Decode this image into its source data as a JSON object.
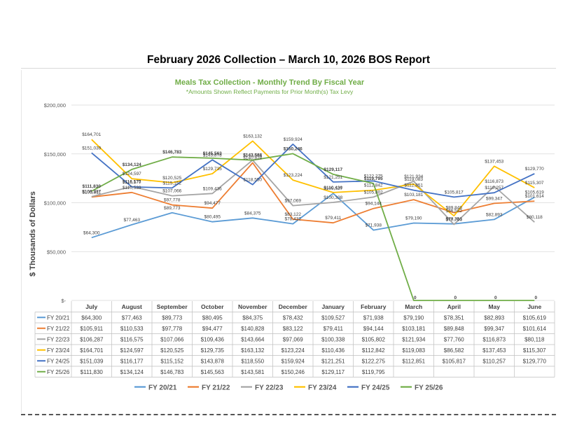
{
  "page": {
    "title": "February 2026 Collection – March 10, 2026 BOS Report"
  },
  "chart_data": {
    "type": "line",
    "title": "Meals Tax Collection - Monthly Trend By Fiscal Year",
    "subtitle": "*Amounts Shown Reflect Payments for Prior Month(s) Tax Levy",
    "xlabel": "",
    "ylabel": "$ Thousands of Dollars",
    "ylim": [
      0,
      200000
    ],
    "yticks": [
      0,
      50000,
      100000,
      150000,
      200000
    ],
    "ytick_labels": [
      "$-",
      "$50,000",
      "$100,000",
      "$150,000",
      "$200,000"
    ],
    "grid": true,
    "legend": "bottom",
    "categories": [
      "July",
      "August",
      "September",
      "October",
      "November",
      "December",
      "January",
      "February",
      "March",
      "April",
      "May",
      "June"
    ],
    "series": [
      {
        "name": "FY 20/21",
        "color": "#5b9bd5",
        "values": [
          64300,
          77463,
          89773,
          80495,
          84375,
          78432,
          109527,
          71938,
          79190,
          78351,
          82893,
          105619
        ],
        "labels": [
          "$64,300",
          "$77,463",
          "$89,773",
          "$80,495",
          "$84,375",
          "$78,432",
          "$109,527",
          "$71,938",
          "$79,190",
          "$78,351",
          "$82,893",
          "$105,619"
        ]
      },
      {
        "name": "FY 21/22",
        "color": "#ed7d31",
        "values": [
          105911,
          110533,
          97778,
          94477,
          140828,
          83122,
          79411,
          94144,
          103181,
          89848,
          99347,
          101614
        ],
        "labels": [
          "$105,911",
          "$110,533",
          "$97,778",
          "$94,477",
          "$140,828",
          "$83,122",
          "$79,411",
          "$94,144",
          "$103,181",
          "$89,848",
          "$99,347",
          "$101,614"
        ]
      },
      {
        "name": "FY 22/23",
        "color": "#a5a5a5",
        "values": [
          106287,
          116575,
          107066,
          109436,
          143664,
          97069,
          100338,
          105802,
          121934,
          77760,
          116873,
          80118
        ],
        "labels": [
          "$106,287",
          "$116,575",
          "$107,066",
          "$109,436",
          "$143,664",
          "$97,069",
          "$100,338",
          "$105,802",
          "$121,934",
          "$77,760",
          "$116,873",
          "$80,118"
        ]
      },
      {
        "name": "FY 23/24",
        "color": "#ffc000",
        "values": [
          164701,
          124597,
          120525,
          129735,
          163132,
          123224,
          110436,
          112842,
          119083,
          86582,
          137453,
          115307
        ],
        "labels": [
          "$164,701",
          "$124,597",
          "$120,525",
          "$129,735",
          "$163,132",
          "$123,224",
          "$110,436",
          "$112,842",
          "$119,083",
          "$86,582",
          "$137,453",
          "$115,307"
        ]
      },
      {
        "name": "FY 24/25",
        "color": "#4472c4",
        "values": [
          151039,
          116177,
          115152,
          143878,
          118550,
          159924,
          121251,
          122275,
          112851,
          105817,
          110257,
          129770
        ],
        "labels": [
          "$151,039",
          "$116,177",
          "$115,152",
          "$143,878",
          "$118,550",
          "$159,924",
          "$121,251",
          "$122,275",
          "$112,851",
          "$105,817",
          "$110,257",
          "$129,770"
        ]
      },
      {
        "name": "FY 25/26",
        "color": "#70ad47",
        "values": [
          111830,
          134124,
          146783,
          145563,
          143581,
          150246,
          129117,
          119795,
          0,
          0,
          0,
          0
        ],
        "labels": [
          "$111,830",
          "$134,124",
          "$146,783",
          "$145,563",
          "$143,581",
          "$150,246",
          "$129,117",
          "$119,795",
          "0",
          "0",
          "0",
          "0"
        ]
      }
    ],
    "table": {
      "rows": [
        {
          "name": "FY 20/21",
          "cells": [
            "$64,300",
            "$77,463",
            "$89,773",
            "$80,495",
            "$84,375",
            "$78,432",
            "$109,527",
            "$71,938",
            "$79,190",
            "$78,351",
            "$82,893",
            "$105,619"
          ]
        },
        {
          "name": "FY 21/22",
          "cells": [
            "$105,911",
            "$110,533",
            "$97,778",
            "$94,477",
            "$140,828",
            "$83,122",
            "$79,411",
            "$94,144",
            "$103,181",
            "$89,848",
            "$99,347",
            "$101,614"
          ]
        },
        {
          "name": "FY 22/23",
          "cells": [
            "$106,287",
            "$116,575",
            "$107,066",
            "$109,436",
            "$143,664",
            "$97,069",
            "$100,338",
            "$105,802",
            "$121,934",
            "$77,760",
            "$116,873",
            "$80,118"
          ]
        },
        {
          "name": "FY 23/24",
          "cells": [
            "$164,701",
            "$124,597",
            "$120,525",
            "$129,735",
            "$163,132",
            "$123,224",
            "$110,436",
            "$112,842",
            "$119,083",
            "$86,582",
            "$137,453",
            "$115,307"
          ]
        },
        {
          "name": "FY 24/25",
          "cells": [
            "$151,039",
            "$116,177",
            "$115,152",
            "$143,878",
            "$118,550",
            "$159,924",
            "$121,251",
            "$122,275",
            "$112,851",
            "$105,817",
            "$110,257",
            "$129,770"
          ]
        },
        {
          "name": "FY 25/26",
          "cells": [
            "$111,830",
            "$134,124",
            "$146,783",
            "$145,563",
            "$143,581",
            "$150,246",
            "$129,117",
            "$119,795",
            "",
            "",
            "",
            ""
          ]
        }
      ]
    }
  }
}
